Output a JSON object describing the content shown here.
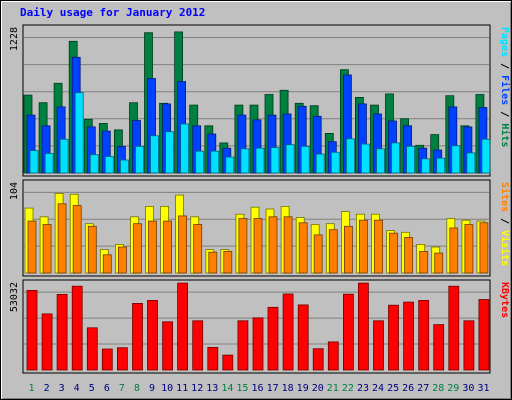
{
  "chart_data": {
    "type": "bar",
    "title": "Daily usage for January 2012",
    "categories": [
      "1",
      "2",
      "3",
      "4",
      "5",
      "6",
      "7",
      "8",
      "9",
      "10",
      "11",
      "12",
      "13",
      "14",
      "15",
      "16",
      "17",
      "18",
      "19",
      "20",
      "21",
      "22",
      "23",
      "24",
      "25",
      "26",
      "27",
      "28",
      "29",
      "30",
      "31"
    ],
    "weekend_days": [
      "1",
      "7",
      "8",
      "14",
      "15",
      "21",
      "22",
      "28",
      "29"
    ],
    "panels": [
      {
        "name": "hits-files-pages",
        "ymax_label": "1228",
        "ylim": [
          0,
          1228
        ],
        "labels": [
          "Pages",
          "Files",
          "Hits"
        ],
        "series": [
          {
            "name": "Hits",
            "color": "#008040",
            "values": [
              660,
              595,
              760,
              1115,
              455,
              420,
              365,
              595,
              1188,
              590,
              1195,
              575,
              400,
              255,
              575,
              575,
              665,
              700,
              590,
              570,
              335,
              875,
              640,
              575,
              670,
              460,
              235,
              325,
              655,
              400,
              665
            ]
          },
          {
            "name": "Files",
            "color": "#0040FF",
            "values": [
              490,
              400,
              560,
              980,
              390,
              355,
              225,
              445,
              800,
              585,
              775,
              400,
              330,
              210,
              490,
              450,
              490,
              500,
              565,
              480,
              265,
              830,
              585,
              500,
              440,
              400,
              210,
              195,
              560,
              390,
              555
            ]
          },
          {
            "name": "Pages",
            "color": "#00E0FF",
            "values": [
              190,
              165,
              285,
              680,
              155,
              140,
              110,
              225,
              315,
              350,
              415,
              185,
              185,
              135,
              205,
              210,
              215,
              240,
              225,
              160,
              175,
              290,
              245,
              205,
              255,
              225,
              120,
              125,
              230,
              170,
              285
            ]
          }
        ]
      },
      {
        "name": "visits-sites",
        "ymax_label": "104",
        "ylim": [
          0,
          104
        ],
        "labels": [
          "Sites",
          "Visits"
        ],
        "series": [
          {
            "name": "Visits",
            "color": "#FFFF00",
            "values": [
              75,
              65,
              92,
              91,
              57,
              27,
              33,
              65,
              77,
              77,
              90,
              65,
              27,
              27,
              68,
              76,
              74,
              77,
              64,
              56,
              57,
              71,
              68,
              68,
              49,
              47,
              33,
              30,
              63,
              61,
              60
            ]
          },
          {
            "name": "Sites",
            "color": "#FF8000",
            "values": [
              60,
              56,
              80,
              78,
              54,
              21,
              30,
              57,
              60,
              60,
              66,
              56,
              24,
              25,
              63,
              63,
              65,
              65,
              58,
              44,
              50,
              54,
              61,
              61,
              46,
              41,
              25,
              23,
              52,
              56,
              58
            ]
          }
        ]
      },
      {
        "name": "kbytes",
        "ymax_label": "53032",
        "ylim": [
          0,
          53032
        ],
        "labels": [
          "KBytes"
        ],
        "series": [
          {
            "name": "KBytes",
            "color": "#FF0000",
            "values": [
              48500,
              34200,
              46100,
              51100,
              25700,
              12800,
              13600,
              40600,
              42400,
              29400,
              53000,
              30000,
              13800,
              9100,
              30000,
              31800,
              38200,
              46300,
              39700,
              13000,
              17100,
              46200,
              53000,
              30000,
              39500,
              41400,
              42400,
              27700,
              51100,
              30000,
              43000
            ]
          }
        ]
      }
    ]
  },
  "colors": {
    "background": "#C0C0C0",
    "title": "#0000FF",
    "weekday_label": "#000080",
    "weekend_label": "#007F40",
    "grid": "#808080"
  }
}
